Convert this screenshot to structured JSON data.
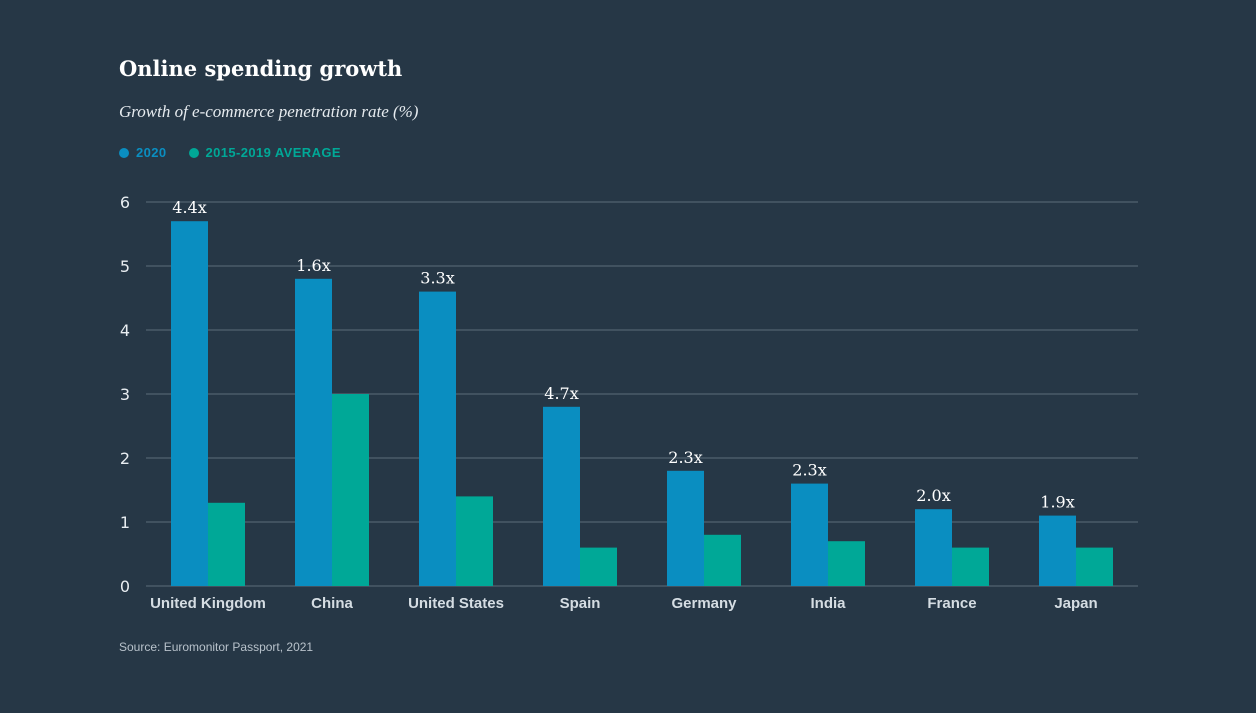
{
  "colors": {
    "background": "#263746",
    "series_2020": "#0a8ec1",
    "series_avg": "#00a897",
    "grid": "#5c6c79"
  },
  "chart_data": {
    "type": "bar",
    "title": "Online spending growth",
    "subtitle": "Growth of e-commerce penetration rate (%)",
    "categories": [
      "United Kingdom",
      "China",
      "United States",
      "Spain",
      "Germany",
      "India",
      "France",
      "Japan"
    ],
    "series": [
      {
        "name": "2020",
        "values": [
          5.7,
          4.8,
          4.6,
          2.8,
          1.8,
          1.6,
          1.2,
          1.1
        ]
      },
      {
        "name": "2015-2019 AVERAGE",
        "values": [
          1.3,
          3.0,
          1.4,
          0.6,
          0.8,
          0.7,
          0.6,
          0.6
        ]
      }
    ],
    "data_labels": [
      "4.4x",
      "1.6x",
      "3.3x",
      "4.7x",
      "2.3x",
      "2.3x",
      "2.0x",
      "1.9x"
    ],
    "yticks": [
      "0",
      "1",
      "2",
      "3",
      "4",
      "5",
      "6"
    ],
    "ylim": [
      0,
      6
    ],
    "xlabel": "",
    "ylabel": "",
    "grid": true,
    "legend_position": "top-left",
    "source": "Source: Euromonitor Passport, 2021"
  }
}
